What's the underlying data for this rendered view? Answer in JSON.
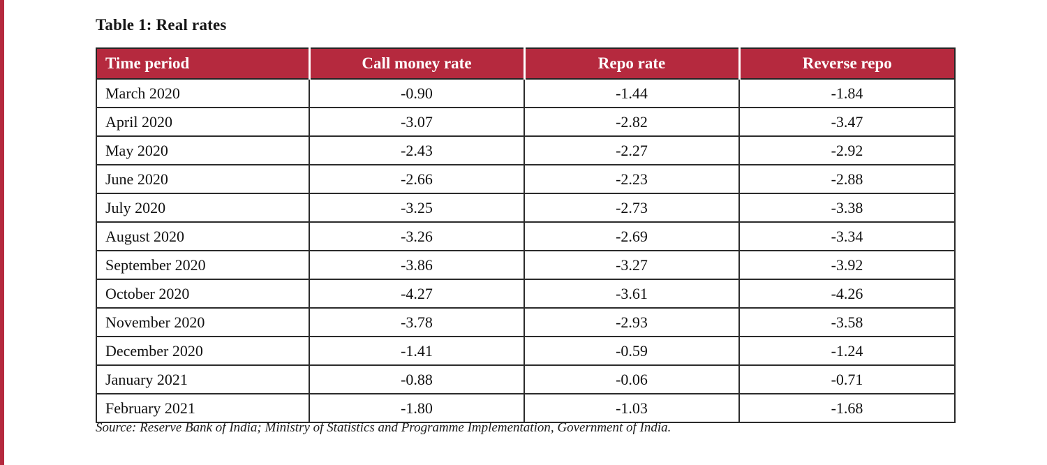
{
  "page": {
    "title": "Table 1: Real rates",
    "source": "Source: Reserve Bank of India; Ministry of Statistics and Programme Implementation, Government of India.",
    "accent_color": "#b5293e"
  },
  "chart_data": {
    "type": "table",
    "title": "Table 1: Real rates",
    "columns": [
      "Time period",
      "Call money rate",
      "Repo rate",
      "Reverse repo"
    ],
    "rows": [
      [
        "March 2020",
        "-0.90",
        "-1.44",
        "-1.84"
      ],
      [
        "April 2020",
        "-3.07",
        "-2.82",
        "-3.47"
      ],
      [
        "May 2020",
        "-2.43",
        "-2.27",
        "-2.92"
      ],
      [
        "June 2020",
        "-2.66",
        "-2.23",
        "-2.88"
      ],
      [
        "July 2020",
        "-3.25",
        "-2.73",
        "-3.38"
      ],
      [
        "August 2020",
        "-3.26",
        "-2.69",
        "-3.34"
      ],
      [
        "September 2020",
        "-3.86",
        "-3.27",
        "-3.92"
      ],
      [
        "October 2020",
        "-4.27",
        "-3.61",
        "-4.26"
      ],
      [
        "November 2020",
        "-3.78",
        "-2.93",
        "-3.58"
      ],
      [
        "December 2020",
        "-1.41",
        "-0.59",
        "-1.24"
      ],
      [
        "January 2021",
        "-0.88",
        "-0.06",
        "-0.71"
      ],
      [
        "February 2021",
        "-1.80",
        "-1.03",
        "-1.68"
      ]
    ],
    "source": "Source: Reserve Bank of India; Ministry of Statistics and Programme Implementation, Government of India."
  }
}
